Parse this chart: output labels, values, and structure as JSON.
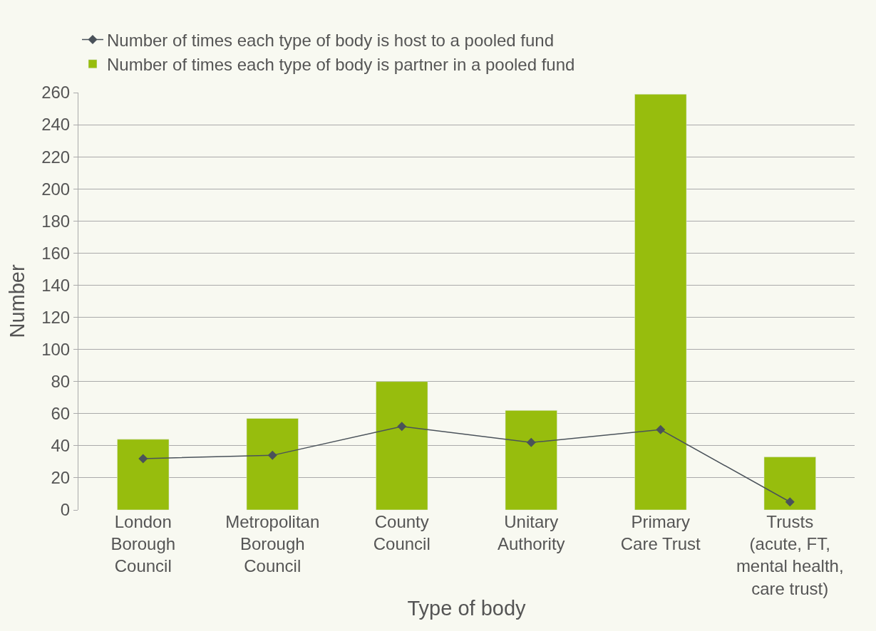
{
  "chart_data": {
    "type": "bar",
    "xlabel": "Type of body",
    "ylabel": "Number",
    "categories": [
      "London\nBorough\nCouncil",
      "Metropolitan\nBorough\nCouncil",
      "County\nCouncil",
      "Unitary\nAuthority",
      "Primary\nCare Trust",
      "Trusts\n(acute, FT,\nmental health,\ncare trust)"
    ],
    "series": [
      {
        "name": "Number of times each type of body is host to a pooled fund",
        "type": "line",
        "color": "#4a525a",
        "marker": "diamond",
        "values": [
          32,
          34,
          52,
          42,
          50,
          5
        ]
      },
      {
        "name": "Number of times each type of body is partner in a pooled fund",
        "color": "#97bd0d",
        "values": [
          44,
          57,
          80,
          62,
          259,
          33
        ]
      }
    ],
    "ylim": [
      0,
      260
    ],
    "yticks": [
      0,
      20,
      40,
      60,
      80,
      100,
      120,
      140,
      160,
      180,
      200,
      220,
      240,
      260
    ],
    "grid": "y",
    "legend": "top left"
  }
}
